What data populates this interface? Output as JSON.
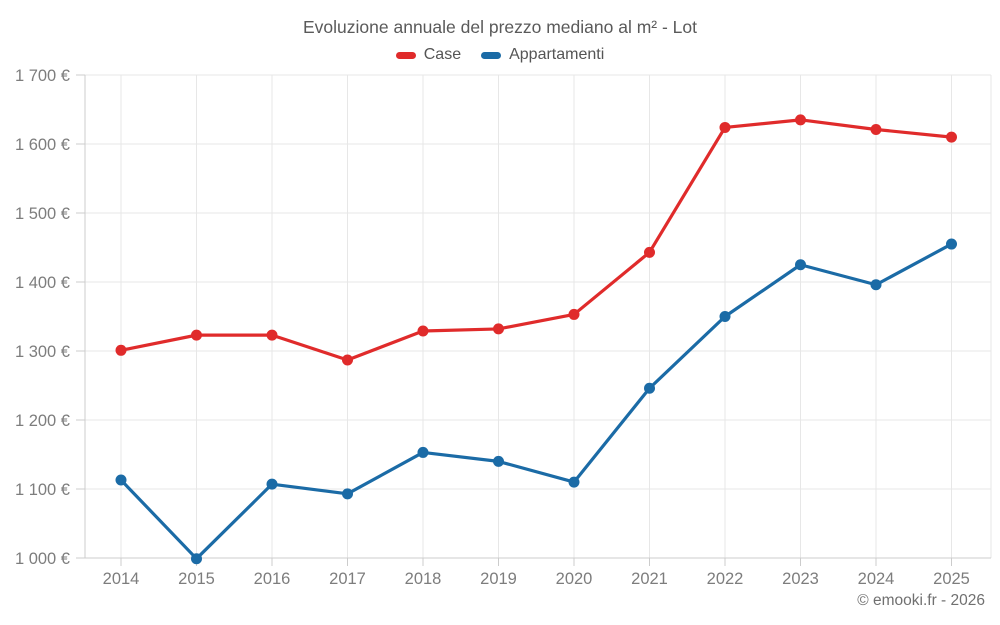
{
  "chart": {
    "title": "Evoluzione annuale del prezzo mediano al m² - Lot",
    "footer": "© emooki.fr - 2026",
    "series_labels": [
      "Case",
      "Appartamenti"
    ]
  },
  "chart_data": {
    "type": "line",
    "title": "Evoluzione annuale del prezzo mediano al m² - Lot",
    "categories": [
      2014,
      2015,
      2016,
      2017,
      2018,
      2019,
      2020,
      2021,
      2022,
      2023,
      2024,
      2025
    ],
    "series": [
      {
        "name": "Case",
        "color": "#e02b2b",
        "values": [
          1301,
          1323,
          1323,
          1287,
          1329,
          1332,
          1353,
          1443,
          1624,
          1635,
          1621,
          1610
        ]
      },
      {
        "name": "Appartamenti",
        "color": "#1b6ba6",
        "values": [
          1113,
          999,
          1107,
          1093,
          1153,
          1140,
          1110,
          1246,
          1350,
          1425,
          1396,
          1455
        ]
      }
    ],
    "xlabel": "",
    "ylabel": "",
    "ylim": [
      1000,
      1700
    ],
    "y_ticks": [
      1000,
      1100,
      1200,
      1300,
      1400,
      1500,
      1600,
      1700
    ],
    "y_tick_labels": [
      "1 000 €",
      "1 100 €",
      "1 200 €",
      "1 300 €",
      "1 400 €",
      "1 500 €",
      "1 600 €",
      "1 700 €"
    ],
    "grid": true,
    "legend_position": "top",
    "currency": "€"
  },
  "colors": {
    "grid": "#e7e7e7",
    "axis": "#cccccc",
    "tick_text": "#7d7d7d"
  }
}
